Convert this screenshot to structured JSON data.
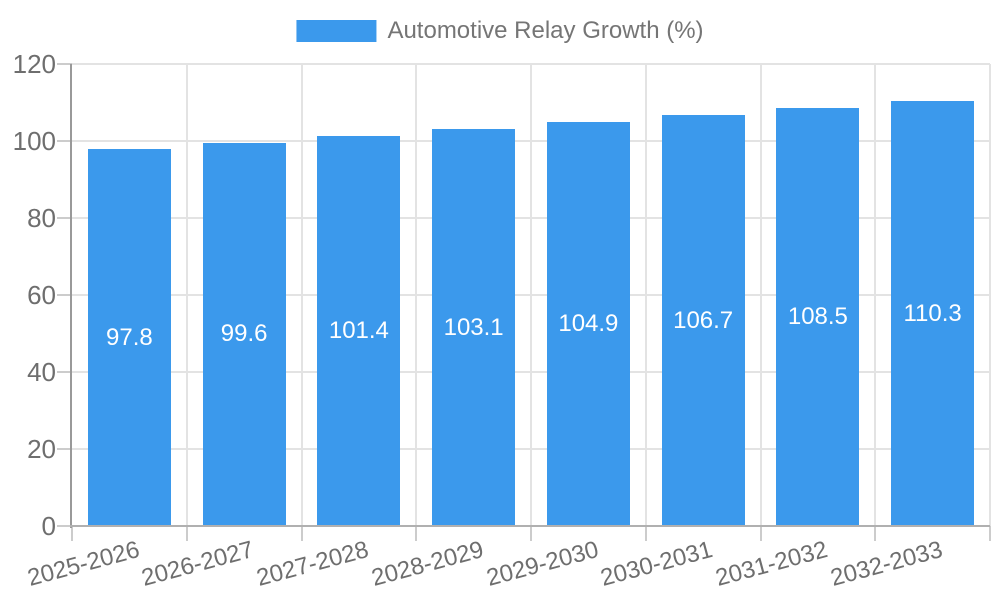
{
  "legend": {
    "label": "Automotive Relay Growth (%)"
  },
  "chart_data": {
    "type": "bar",
    "title": "Automotive Relay Growth (%)",
    "categories": [
      "2025-2026",
      "2026-2027",
      "2027-2028",
      "2028-2029",
      "2029-2030",
      "2030-2031",
      "2031-2032",
      "2032-2033"
    ],
    "values": [
      97.8,
      99.6,
      101.4,
      103.1,
      104.9,
      106.7,
      108.5,
      110.3
    ],
    "value_labels": [
      "97.8",
      "99.6",
      "101.4",
      "103.1",
      "104.9",
      "106.7",
      "108.5",
      "110.3"
    ],
    "series_name": "Automotive Relay Growth (%)",
    "xlabel": "",
    "ylabel": "",
    "ylim": [
      0,
      120
    ],
    "yticks": [
      0,
      20,
      40,
      60,
      80,
      100,
      120
    ],
    "grid": true,
    "legend_position": "top-center",
    "value_label_position": "inside-center",
    "colors": {
      "bar": "#3b99ec",
      "axis_text": "#6e6e6e",
      "legend_text": "#757575",
      "grid": "#e3e3e3",
      "tick": "#cccccc",
      "axis_line_left": "#999999",
      "axis_line_bottom": "#b0b0b0",
      "value_label_text": "#ffffff",
      "background": "#ffffff"
    }
  }
}
